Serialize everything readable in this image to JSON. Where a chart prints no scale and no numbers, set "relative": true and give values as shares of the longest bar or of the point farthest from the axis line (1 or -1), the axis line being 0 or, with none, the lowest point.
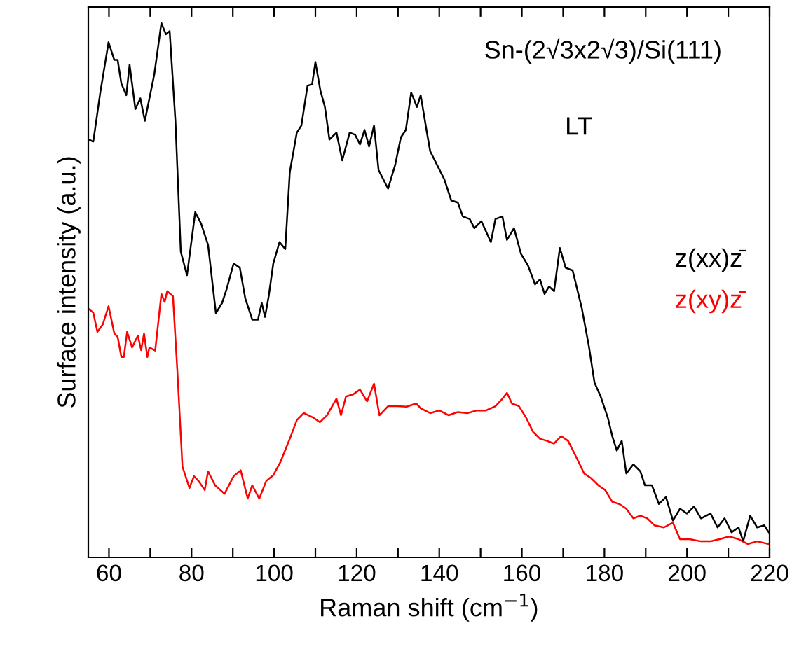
{
  "chart_data": {
    "type": "line",
    "relative": true,
    "xlabel": "Raman shift (cm$^{−1}$)",
    "ylabel": "Surface intensity (a.u.)",
    "xlim": [
      55,
      220
    ],
    "xticks": [
      60,
      {
        "value": 70,
        "label": null
      },
      80,
      {
        "value": 90,
        "label": null
      },
      100,
      {
        "value": 110,
        "label": null
      },
      120,
      {
        "value": 130,
        "label": null
      },
      140,
      {
        "value": 150,
        "label": null
      },
      160,
      {
        "value": 170,
        "label": null
      },
      180,
      {
        "value": 190,
        "label": null
      },
      200,
      {
        "value": 210,
        "label": null
      },
      220
    ],
    "tick_labels": "x",
    "grid": false,
    "legend": false,
    "marker": "none",
    "line_style": "solid",
    "annotations": [
      "Sn-(2√3x2√3)/Si(111)",
      "LT"
    ],
    "series": [
      {
        "name": "z(xx)z̄",
        "color": "#000000",
        "x": [
          55.1,
          56.2,
          57.9,
          59.9,
          61.3,
          62.1,
          63.0,
          64.2,
          65.0,
          66.4,
          67.6,
          68.7,
          71.0,
          72.7,
          73.8,
          74.7,
          76.1,
          77.4,
          78.9,
          80.9,
          82.3,
          84.0,
          85.9,
          87.4,
          88.5,
          90.2,
          91.7,
          93.0,
          94.7,
          96.1,
          97.0,
          97.8,
          98.7,
          99.8,
          101.3,
          102.7,
          103.8,
          105.5,
          106.6,
          108.1,
          109.2,
          110.0,
          111.2,
          112.3,
          113.4,
          115.1,
          116.5,
          118.3,
          119.6,
          120.8,
          121.9,
          123.0,
          124.2,
          125.3,
          127.6,
          129.3,
          130.7,
          131.9,
          133.2,
          134.6,
          135.5,
          136.9,
          137.8,
          139.5,
          141.2,
          142.9,
          144.5,
          145.7,
          147.4,
          148.5,
          150.2,
          152.5,
          153.6,
          155.3,
          156.4,
          158.1,
          159.8,
          161.5,
          163.2,
          164.4,
          165.5,
          166.6,
          167.8,
          169.2,
          170.6,
          172.3,
          174.5,
          176.2,
          177.6,
          179.1,
          180.8,
          181.9,
          183.0,
          184.2,
          185.3,
          187.0,
          188.7,
          189.8,
          191.5,
          193.2,
          194.9,
          196.6,
          198.3,
          200.0,
          201.7,
          203.4,
          205.7,
          207.4,
          209.1,
          210.8,
          212.5,
          213.6,
          215.3,
          217.0,
          218.7,
          219.8
        ],
        "values": [
          0.782,
          0.778,
          0.87,
          0.964,
          0.931,
          0.931,
          0.887,
          0.865,
          0.922,
          0.839,
          0.859,
          0.817,
          0.905,
          1.0,
          0.979,
          0.985,
          0.817,
          0.572,
          0.528,
          0.646,
          0.625,
          0.585,
          0.457,
          0.476,
          0.502,
          0.55,
          0.542,
          0.485,
          0.445,
          0.445,
          0.476,
          0.45,
          0.489,
          0.55,
          0.59,
          0.577,
          0.721,
          0.795,
          0.808,
          0.883,
          0.885,
          0.927,
          0.874,
          0.843,
          0.782,
          0.795,
          0.743,
          0.795,
          0.791,
          0.773,
          0.8,
          0.769,
          0.808,
          0.725,
          0.69,
          0.734,
          0.786,
          0.8,
          0.87,
          0.843,
          0.865,
          0.8,
          0.76,
          0.734,
          0.708,
          0.668,
          0.664,
          0.638,
          0.633,
          0.616,
          0.629,
          0.59,
          0.633,
          0.638,
          0.594,
          0.616,
          0.568,
          0.546,
          0.511,
          0.52,
          0.493,
          0.507,
          0.498,
          0.579,
          0.542,
          0.537,
          0.467,
          0.397,
          0.327,
          0.301,
          0.262,
          0.227,
          0.2,
          0.218,
          0.157,
          0.174,
          0.161,
          0.135,
          0.135,
          0.1,
          0.113,
          0.069,
          0.091,
          0.082,
          0.095,
          0.073,
          0.082,
          0.056,
          0.073,
          0.047,
          0.056,
          0.03,
          0.078,
          0.056,
          0.06,
          0.047
        ]
      },
      {
        "name": "z(xy)z̄",
        "color": "#ff0000",
        "x": [
          55.1,
          56.2,
          57.2,
          58.5,
          59.9,
          61.3,
          62.1,
          63.0,
          63.6,
          64.4,
          65.6,
          67.0,
          67.8,
          68.5,
          69.3,
          69.8,
          71.2,
          72.7,
          73.5,
          74.1,
          75.5,
          76.6,
          77.8,
          79.5,
          80.6,
          81.7,
          83.2,
          84.0,
          85.7,
          88.0,
          90.2,
          91.9,
          93.6,
          94.7,
          96.4,
          98.1,
          99.8,
          101.5,
          103.8,
          105.5,
          107.2,
          109.4,
          111.1,
          112.8,
          115.1,
          116.2,
          117.4,
          119.1,
          120.8,
          122.5,
          124.2,
          125.5,
          127.6,
          129.8,
          132.1,
          134.4,
          135.5,
          137.8,
          140.0,
          142.3,
          144.5,
          146.8,
          149.1,
          151.3,
          153.6,
          155.3,
          156.4,
          157.6,
          159.3,
          161.0,
          162.7,
          164.4,
          166.1,
          167.8,
          169.5,
          171.2,
          172.9,
          175.1,
          176.8,
          178.5,
          180.2,
          181.9,
          183.6,
          185.3,
          187.0,
          188.7,
          190.4,
          192.1,
          194.4,
          196.6,
          198.3,
          200.6,
          203.4,
          205.7,
          207.9,
          210.2,
          212.5,
          214.7,
          217.0,
          219.8
        ],
        "values": [
          0.465,
          0.458,
          0.422,
          0.436,
          0.47,
          0.419,
          0.413,
          0.375,
          0.375,
          0.422,
          0.393,
          0.415,
          0.388,
          0.419,
          0.375,
          0.393,
          0.387,
          0.493,
          0.478,
          0.498,
          0.489,
          0.345,
          0.17,
          0.13,
          0.152,
          0.143,
          0.126,
          0.161,
          0.135,
          0.119,
          0.152,
          0.163,
          0.11,
          0.135,
          0.11,
          0.143,
          0.154,
          0.178,
          0.222,
          0.257,
          0.27,
          0.262,
          0.253,
          0.266,
          0.297,
          0.266,
          0.301,
          0.305,
          0.314,
          0.292,
          0.325,
          0.266,
          0.283,
          0.283,
          0.282,
          0.288,
          0.279,
          0.27,
          0.275,
          0.266,
          0.272,
          0.27,
          0.275,
          0.275,
          0.283,
          0.297,
          0.308,
          0.288,
          0.283,
          0.262,
          0.235,
          0.222,
          0.218,
          0.213,
          0.227,
          0.218,
          0.192,
          0.157,
          0.148,
          0.135,
          0.126,
          0.104,
          0.1,
          0.091,
          0.073,
          0.078,
          0.073,
          0.06,
          0.056,
          0.065,
          0.034,
          0.034,
          0.03,
          0.03,
          0.034,
          0.039,
          0.034,
          0.025,
          0.03,
          0.025
        ]
      }
    ]
  }
}
